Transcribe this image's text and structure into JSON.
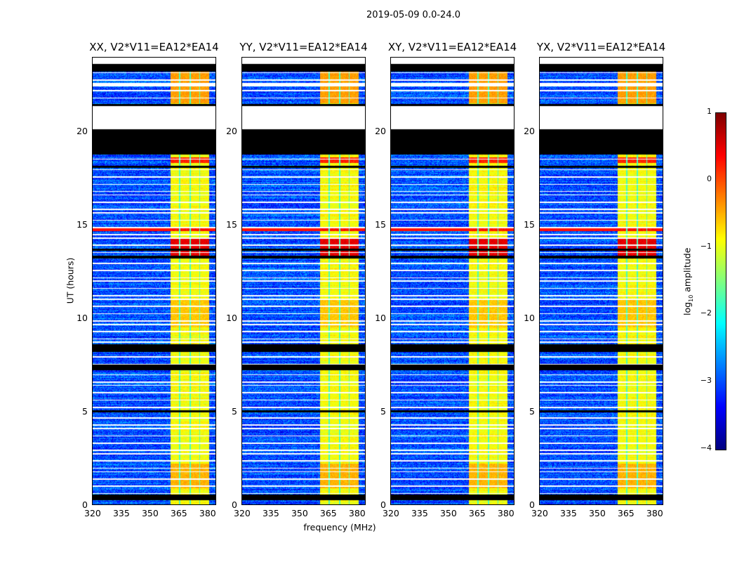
{
  "suptitle": "2019-05-09 0.0-24.0",
  "chart_data": {
    "type": "heatmap",
    "title": "2019-05-09 0.0-24.0",
    "xlabel": "frequency (MHz)",
    "ylabel": "UT (hours)",
    "xlim": [
      320,
      384.8
    ],
    "ylim": [
      0,
      24
    ],
    "xticks": [
      "320",
      "335",
      "350",
      "365",
      "380"
    ],
    "xtick_values": [
      320,
      335,
      350,
      365,
      380
    ],
    "yticks": [
      "0",
      "5",
      "10",
      "15",
      "20"
    ],
    "ytick_values": [
      0,
      5,
      10,
      15,
      20
    ],
    "panels": [
      {
        "title": "XX, V2*V11=EA12*EA14"
      },
      {
        "title": "YY, V2*V11=EA12*EA14"
      },
      {
        "title": "XY, V2*V11=EA12*EA14"
      },
      {
        "title": "YX, V2*V11=EA12*EA14"
      }
    ],
    "colorbar": {
      "label": "log10 amplitude",
      "label_main": "log",
      "label_sub": "10",
      "label_rest": " amplitude",
      "ticks": [
        "1",
        "0",
        "−1",
        "−2",
        "−3",
        "−4"
      ],
      "tick_values": [
        1,
        0,
        -1,
        -2,
        -3,
        -4
      ],
      "range": [
        -4,
        1
      ],
      "colormap": "jet"
    },
    "background_level": -3.0,
    "rfi_band_mhz": [
      361,
      381
    ],
    "rfi_band_level": -0.9,
    "rfi_channel_gaps_mhz": [
      365.5,
      371,
      376
    ],
    "flagged_black_hours": [
      [
        0.25,
        0.55
      ],
      [
        4.95,
        5.05
      ],
      [
        7.2,
        7.5
      ],
      [
        8.2,
        8.6
      ],
      [
        13.2,
        13.35
      ],
      [
        13.6,
        13.7
      ],
      [
        18.05,
        18.15
      ],
      [
        18.75,
        20.1
      ],
      [
        21.35,
        21.45
      ],
      [
        23.2,
        23.6
      ]
    ],
    "no_data_white_hours": [
      [
        20.1,
        21.35
      ],
      [
        22.4,
        22.6
      ],
      [
        23.6,
        24
      ]
    ],
    "enhanced_hours": [
      {
        "range": [
          13.3,
          14.3
        ],
        "level": 0.5
      },
      {
        "range": [
          14.65,
          14.8
        ],
        "level": 0.3,
        "full_band": true
      },
      {
        "range": [
          18.3,
          18.6
        ],
        "level": 0.2
      },
      {
        "range": [
          21.5,
          23.2
        ],
        "level": -0.4
      },
      {
        "range": [
          0.9,
          2.2
        ],
        "level": -0.5
      },
      {
        "range": [
          9.5,
          11
        ],
        "level": -0.6
      }
    ]
  }
}
